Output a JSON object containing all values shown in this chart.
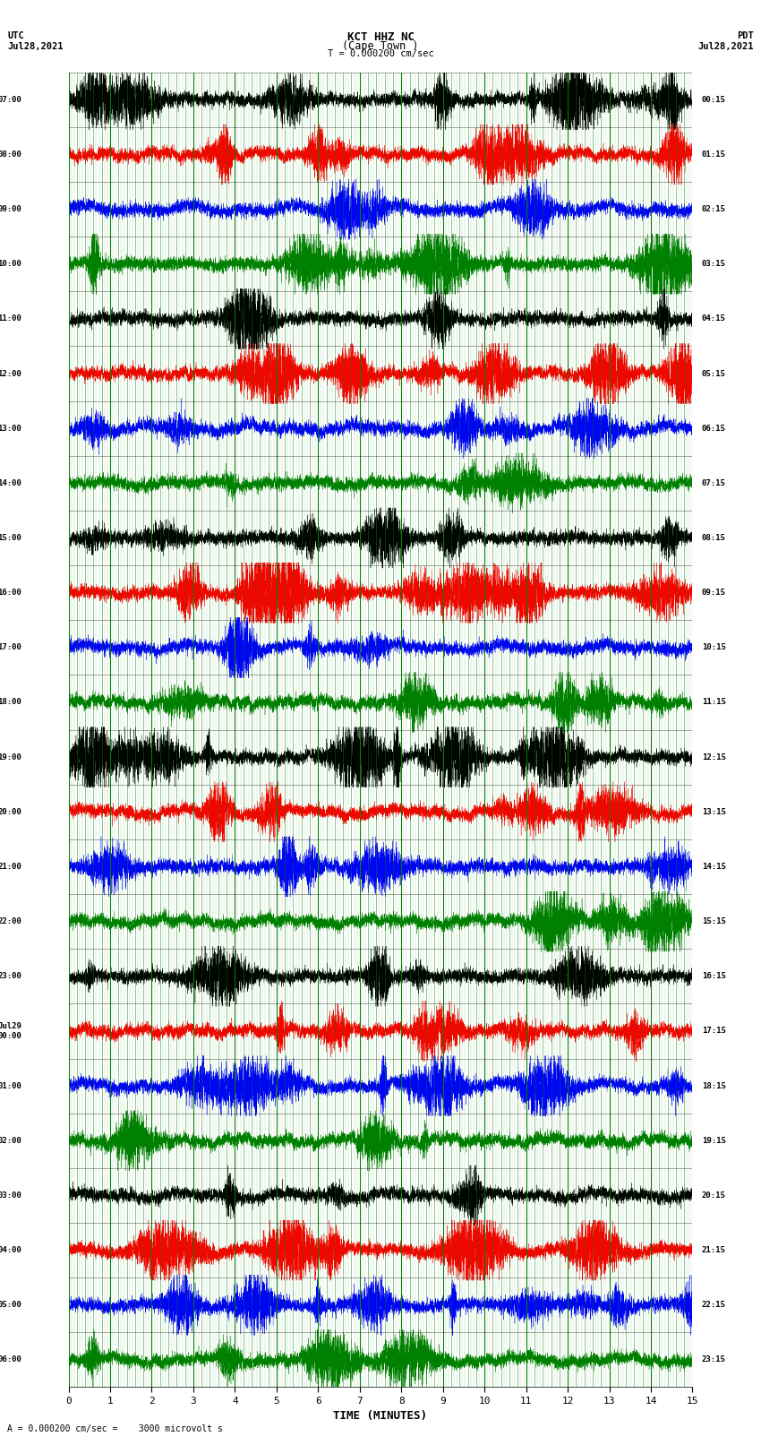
{
  "title_line1": "KCT HHZ NC",
  "title_line2": "(Cape Town )",
  "title_line3": "T = 0.000200 cm/sec",
  "left_date": "UTC\nJul28,2021",
  "right_date": "PDT\nJul28,2021",
  "xlabel": "TIME (MINUTES)",
  "footer": "A = 0.000200 cm/sec =    3000 microvolt s",
  "xlim": [
    0,
    15
  ],
  "xticks": [
    0,
    1,
    2,
    3,
    4,
    5,
    6,
    7,
    8,
    9,
    10,
    11,
    12,
    13,
    14,
    15
  ],
  "left_times_utc": [
    "07:00",
    "08:00",
    "09:00",
    "10:00",
    "11:00",
    "12:00",
    "13:00",
    "14:00",
    "15:00",
    "16:00",
    "17:00",
    "18:00",
    "19:00",
    "20:00",
    "21:00",
    "22:00",
    "23:00",
    "Jul29\n00:00",
    "01:00",
    "02:00",
    "03:00",
    "04:00",
    "05:00",
    "06:00"
  ],
  "right_times_pdt": [
    "00:15",
    "01:15",
    "02:15",
    "03:15",
    "04:15",
    "05:15",
    "06:15",
    "07:15",
    "08:15",
    "09:15",
    "10:15",
    "11:15",
    "12:15",
    "13:15",
    "14:15",
    "15:15",
    "16:15",
    "17:15",
    "18:15",
    "19:15",
    "20:15",
    "21:15",
    "22:15",
    "23:15"
  ],
  "num_traces": 24,
  "trace_colors": [
    "black",
    "red",
    "blue",
    "green"
  ],
  "bg_color": "white",
  "figsize": [
    8.5,
    16.13
  ],
  "dpi": 100
}
